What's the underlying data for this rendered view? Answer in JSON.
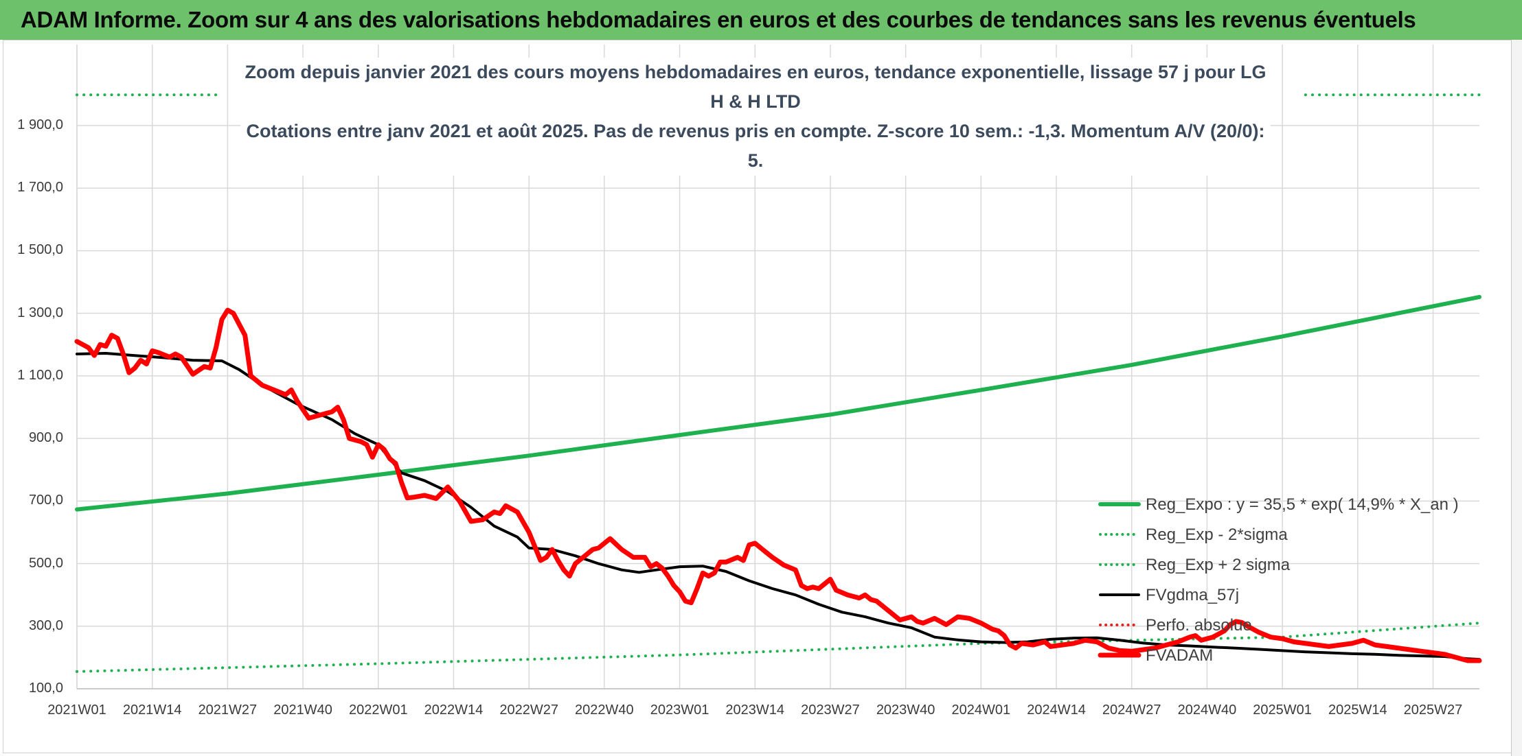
{
  "header": {
    "title": "ADAM Informe. Zoom sur 4 ans des valorisations hebdomadaires en euros et des courbes de tendances sans les revenus éventuels"
  },
  "chart_data": {
    "type": "line",
    "title_line1": "Zoom depuis janvier 2021 des cours moyens hebdomadaires en euros, tendance exponentielle, lissage 57 j pour LG H & H LTD",
    "title_line2": "Cotations entre janv 2021 et août 2025. Pas de revenus pris en compte. Z-score 10 sem.: -1,3. Momentum A/V (20/0): 5.",
    "ylim": [
      100,
      1900
    ],
    "y_ticks": [
      "100,0",
      "300,0",
      "500,0",
      "700,0",
      "900,0",
      "1 100,0",
      "1 300,0",
      "1 500,0",
      "1 700,0",
      "1 900,0"
    ],
    "y_tick_values": [
      100,
      300,
      500,
      700,
      900,
      1100,
      1300,
      1500,
      1700,
      1900
    ],
    "x_ticks": [
      "2021W01",
      "2021W14",
      "2021W27",
      "2021W40",
      "2022W01",
      "2022W14",
      "2022W27",
      "2022W40",
      "2023W01",
      "2023W14",
      "2023W27",
      "2023W40",
      "2024W01",
      "2024W14",
      "2024W27",
      "2024W40",
      "2025W01",
      "2025W14",
      "2025W27"
    ],
    "x_tick_weeks": [
      0,
      13,
      26,
      39,
      52,
      65,
      78,
      91,
      104,
      117,
      130,
      143,
      156,
      169,
      182,
      195,
      208,
      221,
      234
    ],
    "week_max": 242,
    "grid": true,
    "legend_position": "bottom-right",
    "series": [
      {
        "name": "Reg_Expo : y = 35,5 * exp( 14,9% *  X_an )",
        "color": "#1fb04f",
        "style": "solid",
        "width": 6,
        "points": [
          [
            0,
            673
          ],
          [
            26,
            724
          ],
          [
            52,
            784
          ],
          [
            78,
            845
          ],
          [
            104,
            911
          ],
          [
            130,
            976
          ],
          [
            156,
            1055
          ],
          [
            182,
            1135
          ],
          [
            208,
            1226
          ],
          [
            242,
            1352
          ]
        ]
      },
      {
        "name": "Reg_Exp - 2*sigma",
        "color": "#1fb04f",
        "style": "dotted",
        "width": 4,
        "points": [
          [
            0,
            155
          ],
          [
            52,
            180
          ],
          [
            104,
            208
          ],
          [
            156,
            245
          ],
          [
            208,
            265
          ],
          [
            242,
            310
          ]
        ]
      },
      {
        "name": "Reg_Exp + 2 sigma",
        "color": "#1fb04f",
        "style": "dotted",
        "width": 4,
        "points": [
          [
            0,
            1998
          ],
          [
            25,
            1998
          ]
        ]
      },
      {
        "name": "FVgdma_57j",
        "color": "#000000",
        "style": "solid",
        "width": 4,
        "points": [
          [
            0,
            1170
          ],
          [
            5,
            1172
          ],
          [
            10,
            1165
          ],
          [
            15,
            1158
          ],
          [
            20,
            1150
          ],
          [
            25,
            1148
          ],
          [
            28,
            1120
          ],
          [
            32,
            1070
          ],
          [
            38,
            1010
          ],
          [
            44,
            960
          ],
          [
            48,
            915
          ],
          [
            52,
            880
          ],
          [
            56,
            790
          ],
          [
            60,
            765
          ],
          [
            64,
            730
          ],
          [
            68,
            680
          ],
          [
            72,
            620
          ],
          [
            76,
            585
          ],
          [
            78,
            550
          ],
          [
            82,
            545
          ],
          [
            86,
            525
          ],
          [
            90,
            500
          ],
          [
            94,
            480
          ],
          [
            97,
            472
          ],
          [
            100,
            480
          ],
          [
            104,
            490
          ],
          [
            108,
            492
          ],
          [
            112,
            475
          ],
          [
            116,
            445
          ],
          [
            120,
            420
          ],
          [
            124,
            400
          ],
          [
            128,
            370
          ],
          [
            132,
            345
          ],
          [
            136,
            330
          ],
          [
            140,
            310
          ],
          [
            144,
            295
          ],
          [
            148,
            265
          ],
          [
            152,
            256
          ],
          [
            156,
            250
          ],
          [
            160,
            248
          ],
          [
            164,
            250
          ],
          [
            168,
            258
          ],
          [
            172,
            262
          ],
          [
            176,
            263
          ],
          [
            180,
            255
          ],
          [
            184,
            246
          ],
          [
            188,
            240
          ],
          [
            192,
            237
          ],
          [
            196,
            233
          ],
          [
            200,
            230
          ],
          [
            204,
            226
          ],
          [
            208,
            222
          ],
          [
            212,
            218
          ],
          [
            216,
            215
          ],
          [
            220,
            212
          ],
          [
            224,
            210
          ],
          [
            228,
            207
          ],
          [
            232,
            205
          ],
          [
            236,
            203
          ],
          [
            240,
            196
          ],
          [
            242,
            194
          ]
        ]
      },
      {
        "name": "Perfo. absolue",
        "color": "#e8201a",
        "style": "dotted",
        "width": 4,
        "points": []
      },
      {
        "name": "FVADAM",
        "color": "#ff0000",
        "style": "solid",
        "width": 7,
        "points": [
          [
            0,
            1210
          ],
          [
            2,
            1190
          ],
          [
            3,
            1165
          ],
          [
            4,
            1200
          ],
          [
            5,
            1195
          ],
          [
            6,
            1230
          ],
          [
            7,
            1220
          ],
          [
            8,
            1170
          ],
          [
            9,
            1110
          ],
          [
            10,
            1125
          ],
          [
            11,
            1150
          ],
          [
            12,
            1138
          ],
          [
            13,
            1180
          ],
          [
            14,
            1175
          ],
          [
            16,
            1160
          ],
          [
            17,
            1170
          ],
          [
            18,
            1160
          ],
          [
            20,
            1105
          ],
          [
            22,
            1130
          ],
          [
            23,
            1125
          ],
          [
            24,
            1190
          ],
          [
            25,
            1280
          ],
          [
            26,
            1310
          ],
          [
            27,
            1300
          ],
          [
            29,
            1230
          ],
          [
            30,
            1100
          ],
          [
            32,
            1070
          ],
          [
            34,
            1055
          ],
          [
            36,
            1040
          ],
          [
            37,
            1055
          ],
          [
            38,
            1020
          ],
          [
            40,
            965
          ],
          [
            42,
            975
          ],
          [
            44,
            985
          ],
          [
            45,
            1000
          ],
          [
            46,
            960
          ],
          [
            47,
            900
          ],
          [
            49,
            890
          ],
          [
            50,
            880
          ],
          [
            51,
            840
          ],
          [
            52,
            880
          ],
          [
            53,
            865
          ],
          [
            54,
            835
          ],
          [
            55,
            820
          ],
          [
            56,
            760
          ],
          [
            57,
            710
          ],
          [
            58,
            712
          ],
          [
            60,
            718
          ],
          [
            62,
            708
          ],
          [
            64,
            745
          ],
          [
            66,
            700
          ],
          [
            68,
            635
          ],
          [
            70,
            640
          ],
          [
            72,
            665
          ],
          [
            73,
            660
          ],
          [
            74,
            685
          ],
          [
            76,
            665
          ],
          [
            78,
            600
          ],
          [
            79,
            555
          ],
          [
            80,
            510
          ],
          [
            81,
            520
          ],
          [
            82,
            545
          ],
          [
            83,
            510
          ],
          [
            84,
            480
          ],
          [
            85,
            460
          ],
          [
            86,
            500
          ],
          [
            88,
            530
          ],
          [
            89,
            545
          ],
          [
            90,
            550
          ],
          [
            92,
            580
          ],
          [
            94,
            545
          ],
          [
            96,
            520
          ],
          [
            98,
            520
          ],
          [
            99,
            490
          ],
          [
            100,
            500
          ],
          [
            101,
            485
          ],
          [
            102,
            460
          ],
          [
            103,
            430
          ],
          [
            104,
            410
          ],
          [
            105,
            380
          ],
          [
            106,
            375
          ],
          [
            107,
            420
          ],
          [
            108,
            470
          ],
          [
            109,
            460
          ],
          [
            110,
            470
          ],
          [
            111,
            505
          ],
          [
            112,
            505
          ],
          [
            114,
            520
          ],
          [
            115,
            510
          ],
          [
            116,
            560
          ],
          [
            117,
            565
          ],
          [
            118,
            550
          ],
          [
            119,
            535
          ],
          [
            120,
            520
          ],
          [
            122,
            495
          ],
          [
            124,
            480
          ],
          [
            125,
            430
          ],
          [
            126,
            420
          ],
          [
            127,
            425
          ],
          [
            128,
            420
          ],
          [
            130,
            450
          ],
          [
            131,
            415
          ],
          [
            133,
            400
          ],
          [
            135,
            390
          ],
          [
            136,
            400
          ],
          [
            137,
            385
          ],
          [
            138,
            380
          ],
          [
            140,
            350
          ],
          [
            142,
            320
          ],
          [
            144,
            330
          ],
          [
            145,
            315
          ],
          [
            146,
            310
          ],
          [
            148,
            325
          ],
          [
            150,
            305
          ],
          [
            152,
            330
          ],
          [
            154,
            325
          ],
          [
            156,
            310
          ],
          [
            158,
            290
          ],
          [
            159,
            285
          ],
          [
            160,
            270
          ],
          [
            161,
            240
          ],
          [
            162,
            230
          ],
          [
            163,
            245
          ],
          [
            165,
            240
          ],
          [
            167,
            250
          ],
          [
            168,
            235
          ],
          [
            170,
            240
          ],
          [
            172,
            245
          ],
          [
            174,
            255
          ],
          [
            176,
            250
          ],
          [
            178,
            230
          ],
          [
            180,
            222
          ],
          [
            182,
            220
          ],
          [
            184,
            225
          ],
          [
            186,
            230
          ],
          [
            188,
            240
          ],
          [
            190,
            250
          ],
          [
            192,
            265
          ],
          [
            193,
            270
          ],
          [
            194,
            255
          ],
          [
            196,
            265
          ],
          [
            198,
            285
          ],
          [
            199,
            305
          ],
          [
            200,
            315
          ],
          [
            201,
            312
          ],
          [
            202,
            300
          ],
          [
            204,
            280
          ],
          [
            206,
            265
          ],
          [
            208,
            260
          ],
          [
            210,
            250
          ],
          [
            212,
            245
          ],
          [
            214,
            240
          ],
          [
            216,
            235
          ],
          [
            218,
            240
          ],
          [
            220,
            245
          ],
          [
            222,
            255
          ],
          [
            224,
            240
          ],
          [
            226,
            235
          ],
          [
            228,
            230
          ],
          [
            230,
            225
          ],
          [
            232,
            220
          ],
          [
            234,
            215
          ],
          [
            236,
            210
          ],
          [
            237,
            205
          ],
          [
            238,
            200
          ],
          [
            239,
            195
          ],
          [
            240,
            190
          ],
          [
            242,
            190
          ]
        ]
      }
    ]
  }
}
